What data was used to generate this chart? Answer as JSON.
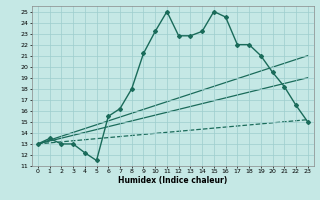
{
  "xlabel": "Humidex (Indice chaleur)",
  "background_color": "#c5e8e5",
  "grid_color": "#9ecece",
  "line_color": "#1a6b5a",
  "xlim": [
    -0.5,
    23.5
  ],
  "ylim": [
    11,
    25.5
  ],
  "xticks": [
    0,
    1,
    2,
    3,
    4,
    5,
    6,
    7,
    8,
    9,
    10,
    11,
    12,
    13,
    14,
    15,
    16,
    17,
    18,
    19,
    20,
    21,
    22,
    23
  ],
  "yticks": [
    11,
    12,
    13,
    14,
    15,
    16,
    17,
    18,
    19,
    20,
    21,
    22,
    23,
    24,
    25
  ],
  "main_x": [
    0,
    1,
    2,
    3,
    4,
    5,
    6,
    7,
    8,
    9,
    10,
    11,
    12,
    13,
    14,
    15,
    16,
    17,
    18,
    19,
    20,
    21,
    22,
    23
  ],
  "main_y": [
    13,
    13.5,
    13,
    13,
    12.2,
    11.5,
    15.5,
    16.2,
    18,
    21.2,
    23.2,
    25,
    22.8,
    22.8,
    23.2,
    25,
    24.5,
    22,
    22,
    21,
    19.5,
    18.2,
    16.5,
    15
  ],
  "line1_x": [
    0,
    23
  ],
  "line1_y": [
    13,
    21.0
  ],
  "line2_x": [
    0,
    23
  ],
  "line2_y": [
    13,
    19.0
  ],
  "line3_x": [
    0,
    23
  ],
  "line3_y": [
    13,
    15.2
  ]
}
